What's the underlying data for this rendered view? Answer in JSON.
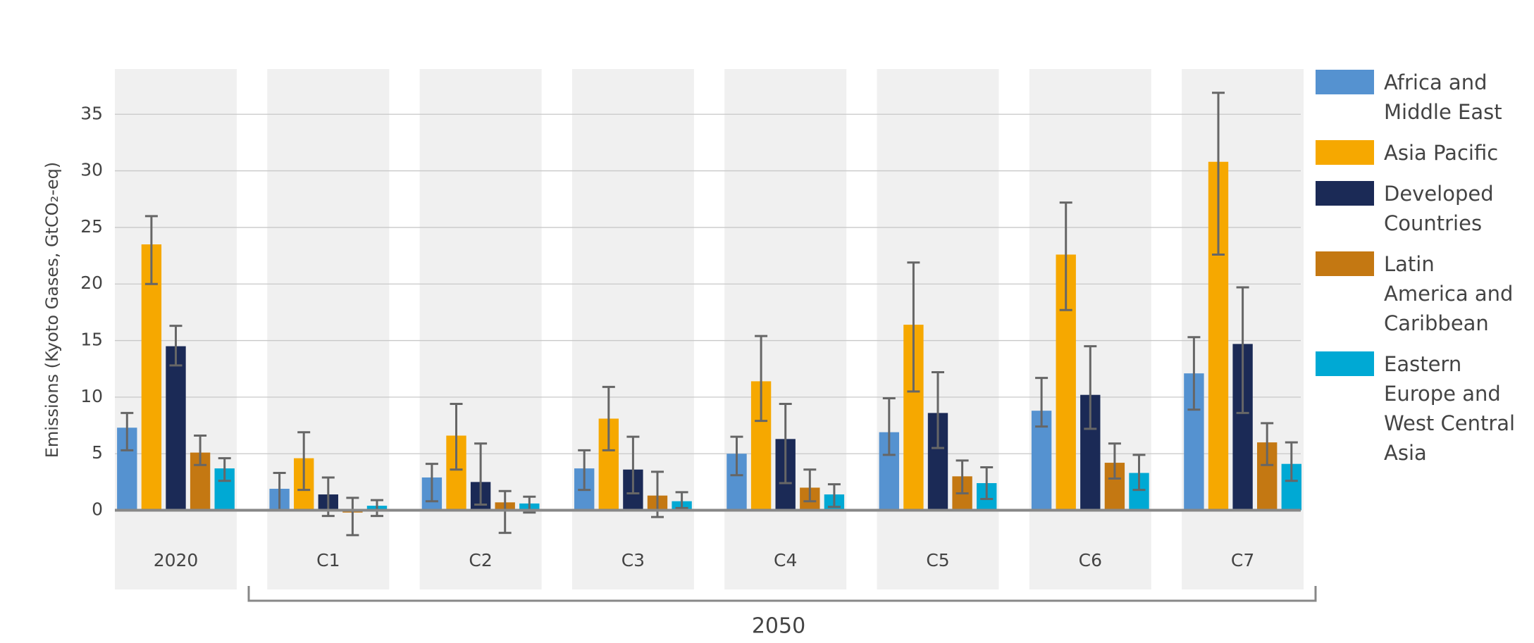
{
  "chart_data": {
    "type": "bar",
    "y_label": "Emissions (Kyoto Gases, GtCO₂-eq)",
    "group_label": "2050",
    "categories": [
      "2020",
      "C1",
      "C2",
      "C3",
      "C4",
      "C5",
      "C6",
      "C7"
    ],
    "ylim": [
      -7,
      39
    ],
    "yticks": [
      0,
      5,
      10,
      15,
      20,
      25,
      30,
      35
    ],
    "grid": true,
    "legend": "right",
    "series": [
      {
        "name": "Africa and Middle East",
        "color": "#5592d0",
        "values": [
          7.3,
          1.9,
          2.9,
          3.7,
          5.0,
          6.9,
          8.8,
          12.1
        ],
        "low": [
          5.3,
          0.0,
          0.8,
          1.8,
          3.1,
          4.9,
          7.4,
          8.9
        ],
        "high": [
          8.6,
          3.3,
          4.1,
          5.3,
          6.5,
          9.9,
          11.7,
          15.3
        ]
      },
      {
        "name": "Asia Pacific",
        "color": "#f6a800",
        "values": [
          23.5,
          4.6,
          6.6,
          8.1,
          11.4,
          16.4,
          22.6,
          30.8
        ],
        "low": [
          20.0,
          1.8,
          3.6,
          5.3,
          7.9,
          10.5,
          17.7,
          22.6
        ],
        "high": [
          26.0,
          6.9,
          9.4,
          10.9,
          15.4,
          21.9,
          27.2,
          36.9
        ]
      },
      {
        "name": "Developed Countries",
        "color": "#1b2a56",
        "values": [
          14.5,
          1.4,
          2.5,
          3.6,
          6.3,
          8.6,
          10.2,
          14.7
        ],
        "low": [
          12.8,
          -0.5,
          0.5,
          1.5,
          2.4,
          5.5,
          7.2,
          8.6
        ],
        "high": [
          16.3,
          2.9,
          5.9,
          6.5,
          9.4,
          12.2,
          14.5,
          19.7
        ]
      },
      {
        "name": "Latin America and Caribbean",
        "color": "#c47812",
        "values": [
          5.1,
          -0.2,
          0.7,
          1.3,
          2.0,
          3.0,
          4.2,
          6.0
        ],
        "low": [
          4.0,
          -2.2,
          -2.0,
          -0.6,
          0.8,
          1.5,
          2.8,
          4.0
        ],
        "high": [
          6.6,
          1.1,
          1.7,
          3.4,
          3.6,
          4.4,
          5.9,
          7.7
        ]
      },
      {
        "name": "Eastern Europe and West Central Asia",
        "color": "#00a9d4",
        "values": [
          3.7,
          0.4,
          0.6,
          0.8,
          1.4,
          2.4,
          3.3,
          4.1
        ],
        "low": [
          2.6,
          -0.5,
          -0.2,
          0.2,
          0.3,
          1.0,
          1.8,
          2.6
        ],
        "high": [
          4.6,
          0.9,
          1.2,
          1.6,
          2.3,
          3.8,
          4.9,
          6.0
        ]
      }
    ]
  }
}
